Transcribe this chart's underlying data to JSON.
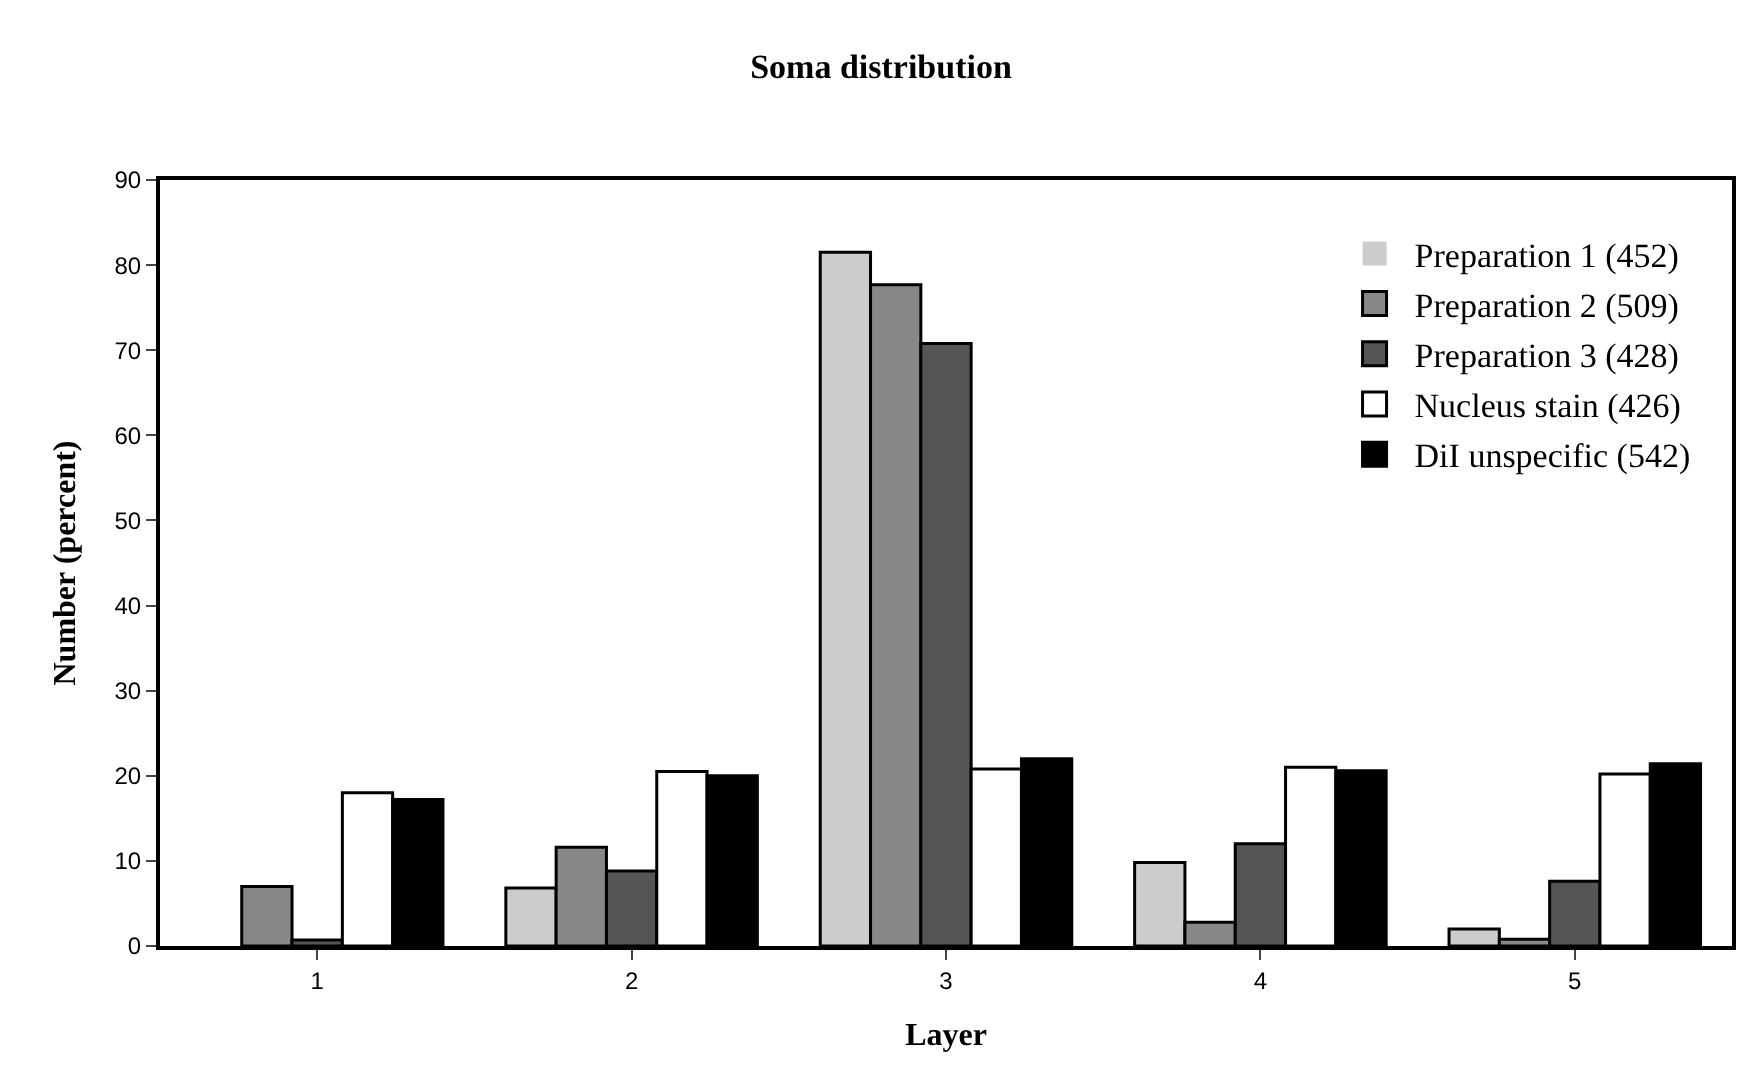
{
  "chart_data": {
    "type": "bar",
    "title": "Soma distribution",
    "xlabel": "Layer",
    "ylabel": "Number (percent)",
    "categories": [
      "1",
      "2",
      "3",
      "4",
      "5"
    ],
    "series": [
      {
        "name": "Preparation 1 (452)",
        "color": "#cccccc",
        "values": [
          0,
          6.8,
          81.5,
          9.8,
          2
        ]
      },
      {
        "name": "Preparation 2 (509)",
        "color": "#888888",
        "values": [
          7,
          11.6,
          77.7,
          2.8,
          0.8
        ]
      },
      {
        "name": "Preparation 3 (428)",
        "color": "#555555",
        "values": [
          0.7,
          8.8,
          70.8,
          12,
          7.6
        ]
      },
      {
        "name": "Nucleus stain (426)",
        "color": "#ffffff",
        "values": [
          18,
          20.5,
          20.8,
          21,
          20.2
        ]
      },
      {
        "name": "DiI unspecific (542)",
        "color": "#000000",
        "values": [
          17.2,
          20,
          22,
          20.6,
          21.4
        ]
      }
    ],
    "ylim": [
      0,
      90
    ],
    "yticks": [
      0,
      10,
      20,
      30,
      40,
      50,
      60,
      70,
      80,
      90
    ],
    "grid": false,
    "legend": "top right"
  }
}
